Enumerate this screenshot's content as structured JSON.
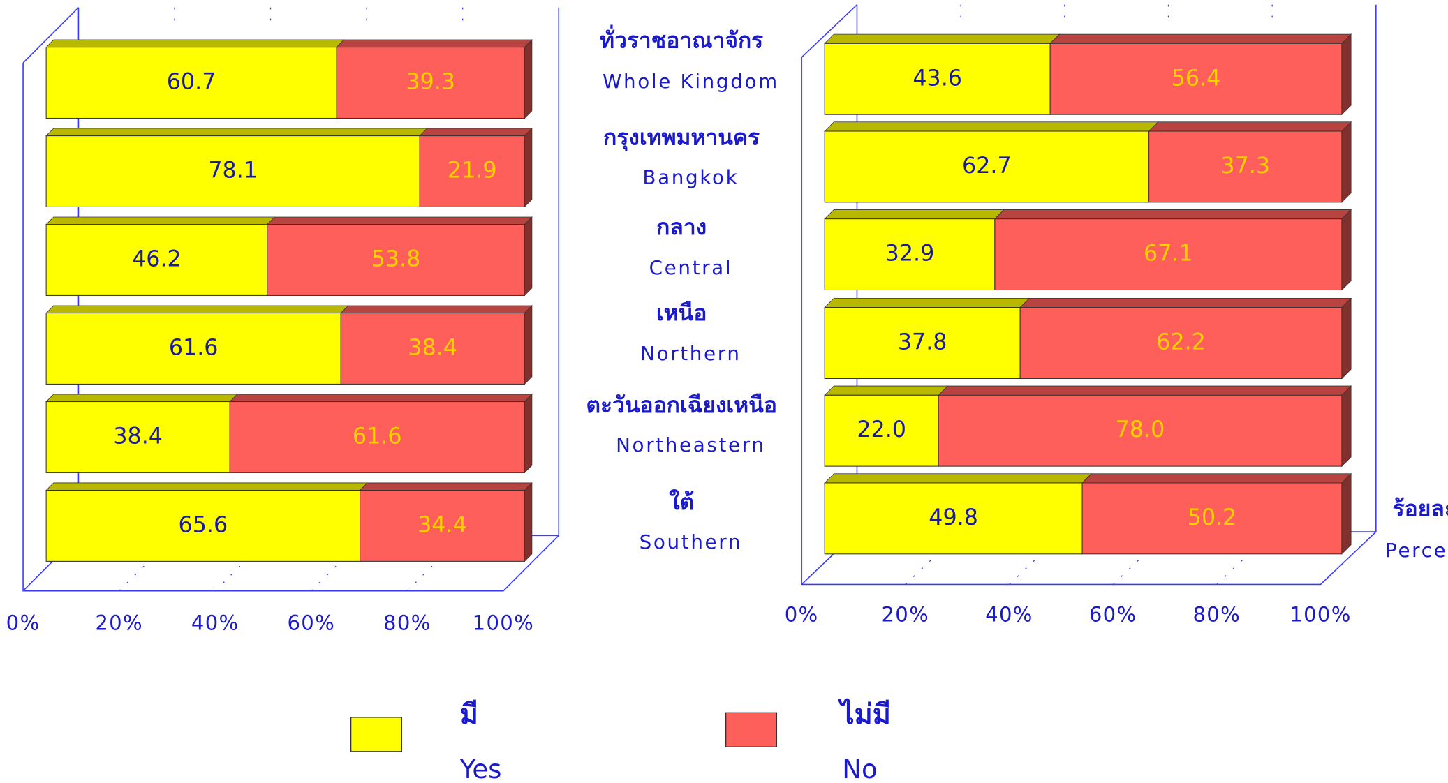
{
  "category_labels": [
    {
      "thai": "ทั่วราชอาณาจักร",
      "english": "Whole Kingdom"
    },
    {
      "thai": "กรุงเทพมหานคร",
      "english": "Bangkok"
    },
    {
      "thai": "กลาง",
      "english": "Central"
    },
    {
      "thai": "เหนือ",
      "english": "Northern"
    },
    {
      "thai": "ตะวันออกเฉียงเหนือ",
      "english": "Northeastern"
    },
    {
      "thai": "ใต้",
      "english": "Southern"
    }
  ],
  "unit_label": {
    "thai": "ร้อยละ",
    "english": "Percent"
  },
  "legend": [
    {
      "thai": "มี",
      "english": "Yes",
      "color": "#ffff00"
    },
    {
      "thai": "ไม่มี",
      "english": "No",
      "color": "#ff5f5a"
    }
  ],
  "chart_data": [
    {
      "type": "bar",
      "stacked": true,
      "series": [
        {
          "color": "#ffff00",
          "values": [
            60.7,
            78.1,
            46.2,
            61.6,
            38.4,
            65.6
          ],
          "value_labels": [
            "60.7",
            "78.1",
            "46.2",
            "61.6",
            "38.4",
            "65.6"
          ]
        },
        {
          "color": "#ff5f5a",
          "values": [
            39.3,
            21.9,
            53.8,
            38.4,
            61.6,
            34.4
          ],
          "value_labels": [
            "39.3",
            "21.9",
            "53.8",
            "38.4",
            "61.6",
            "34.4"
          ]
        }
      ],
      "xlim": [
        0,
        100
      ],
      "xticks": [
        {
          "value": 0,
          "label": "0%"
        },
        {
          "value": 20,
          "label": "20%"
        },
        {
          "value": 40,
          "label": "40%"
        },
        {
          "value": 60,
          "label": "60%"
        },
        {
          "value": 80,
          "label": "80%"
        },
        {
          "value": 100,
          "label": "100%"
        }
      ]
    },
    {
      "type": "bar",
      "stacked": true,
      "series": [
        {
          "color": "#ffff00",
          "values": [
            43.6,
            62.7,
            32.9,
            37.8,
            22.0,
            49.8
          ],
          "value_labels": [
            "43.6",
            "62.7",
            "32.9",
            "37.8",
            "22.0",
            "49.8"
          ]
        },
        {
          "color": "#ff5f5a",
          "values": [
            56.4,
            37.3,
            67.1,
            62.2,
            78.0,
            50.2
          ],
          "value_labels": [
            "56.4",
            "37.3",
            "67.1",
            "62.2",
            "78.0",
            "50.2"
          ]
        }
      ],
      "xlim": [
        0,
        100
      ],
      "xticks": [
        {
          "value": 0,
          "label": "0%"
        },
        {
          "value": 20,
          "label": "20%"
        },
        {
          "value": 40,
          "label": "40%"
        },
        {
          "value": 60,
          "label": "60%"
        },
        {
          "value": 80,
          "label": "80%"
        },
        {
          "value": 100,
          "label": "100%"
        }
      ]
    }
  ]
}
